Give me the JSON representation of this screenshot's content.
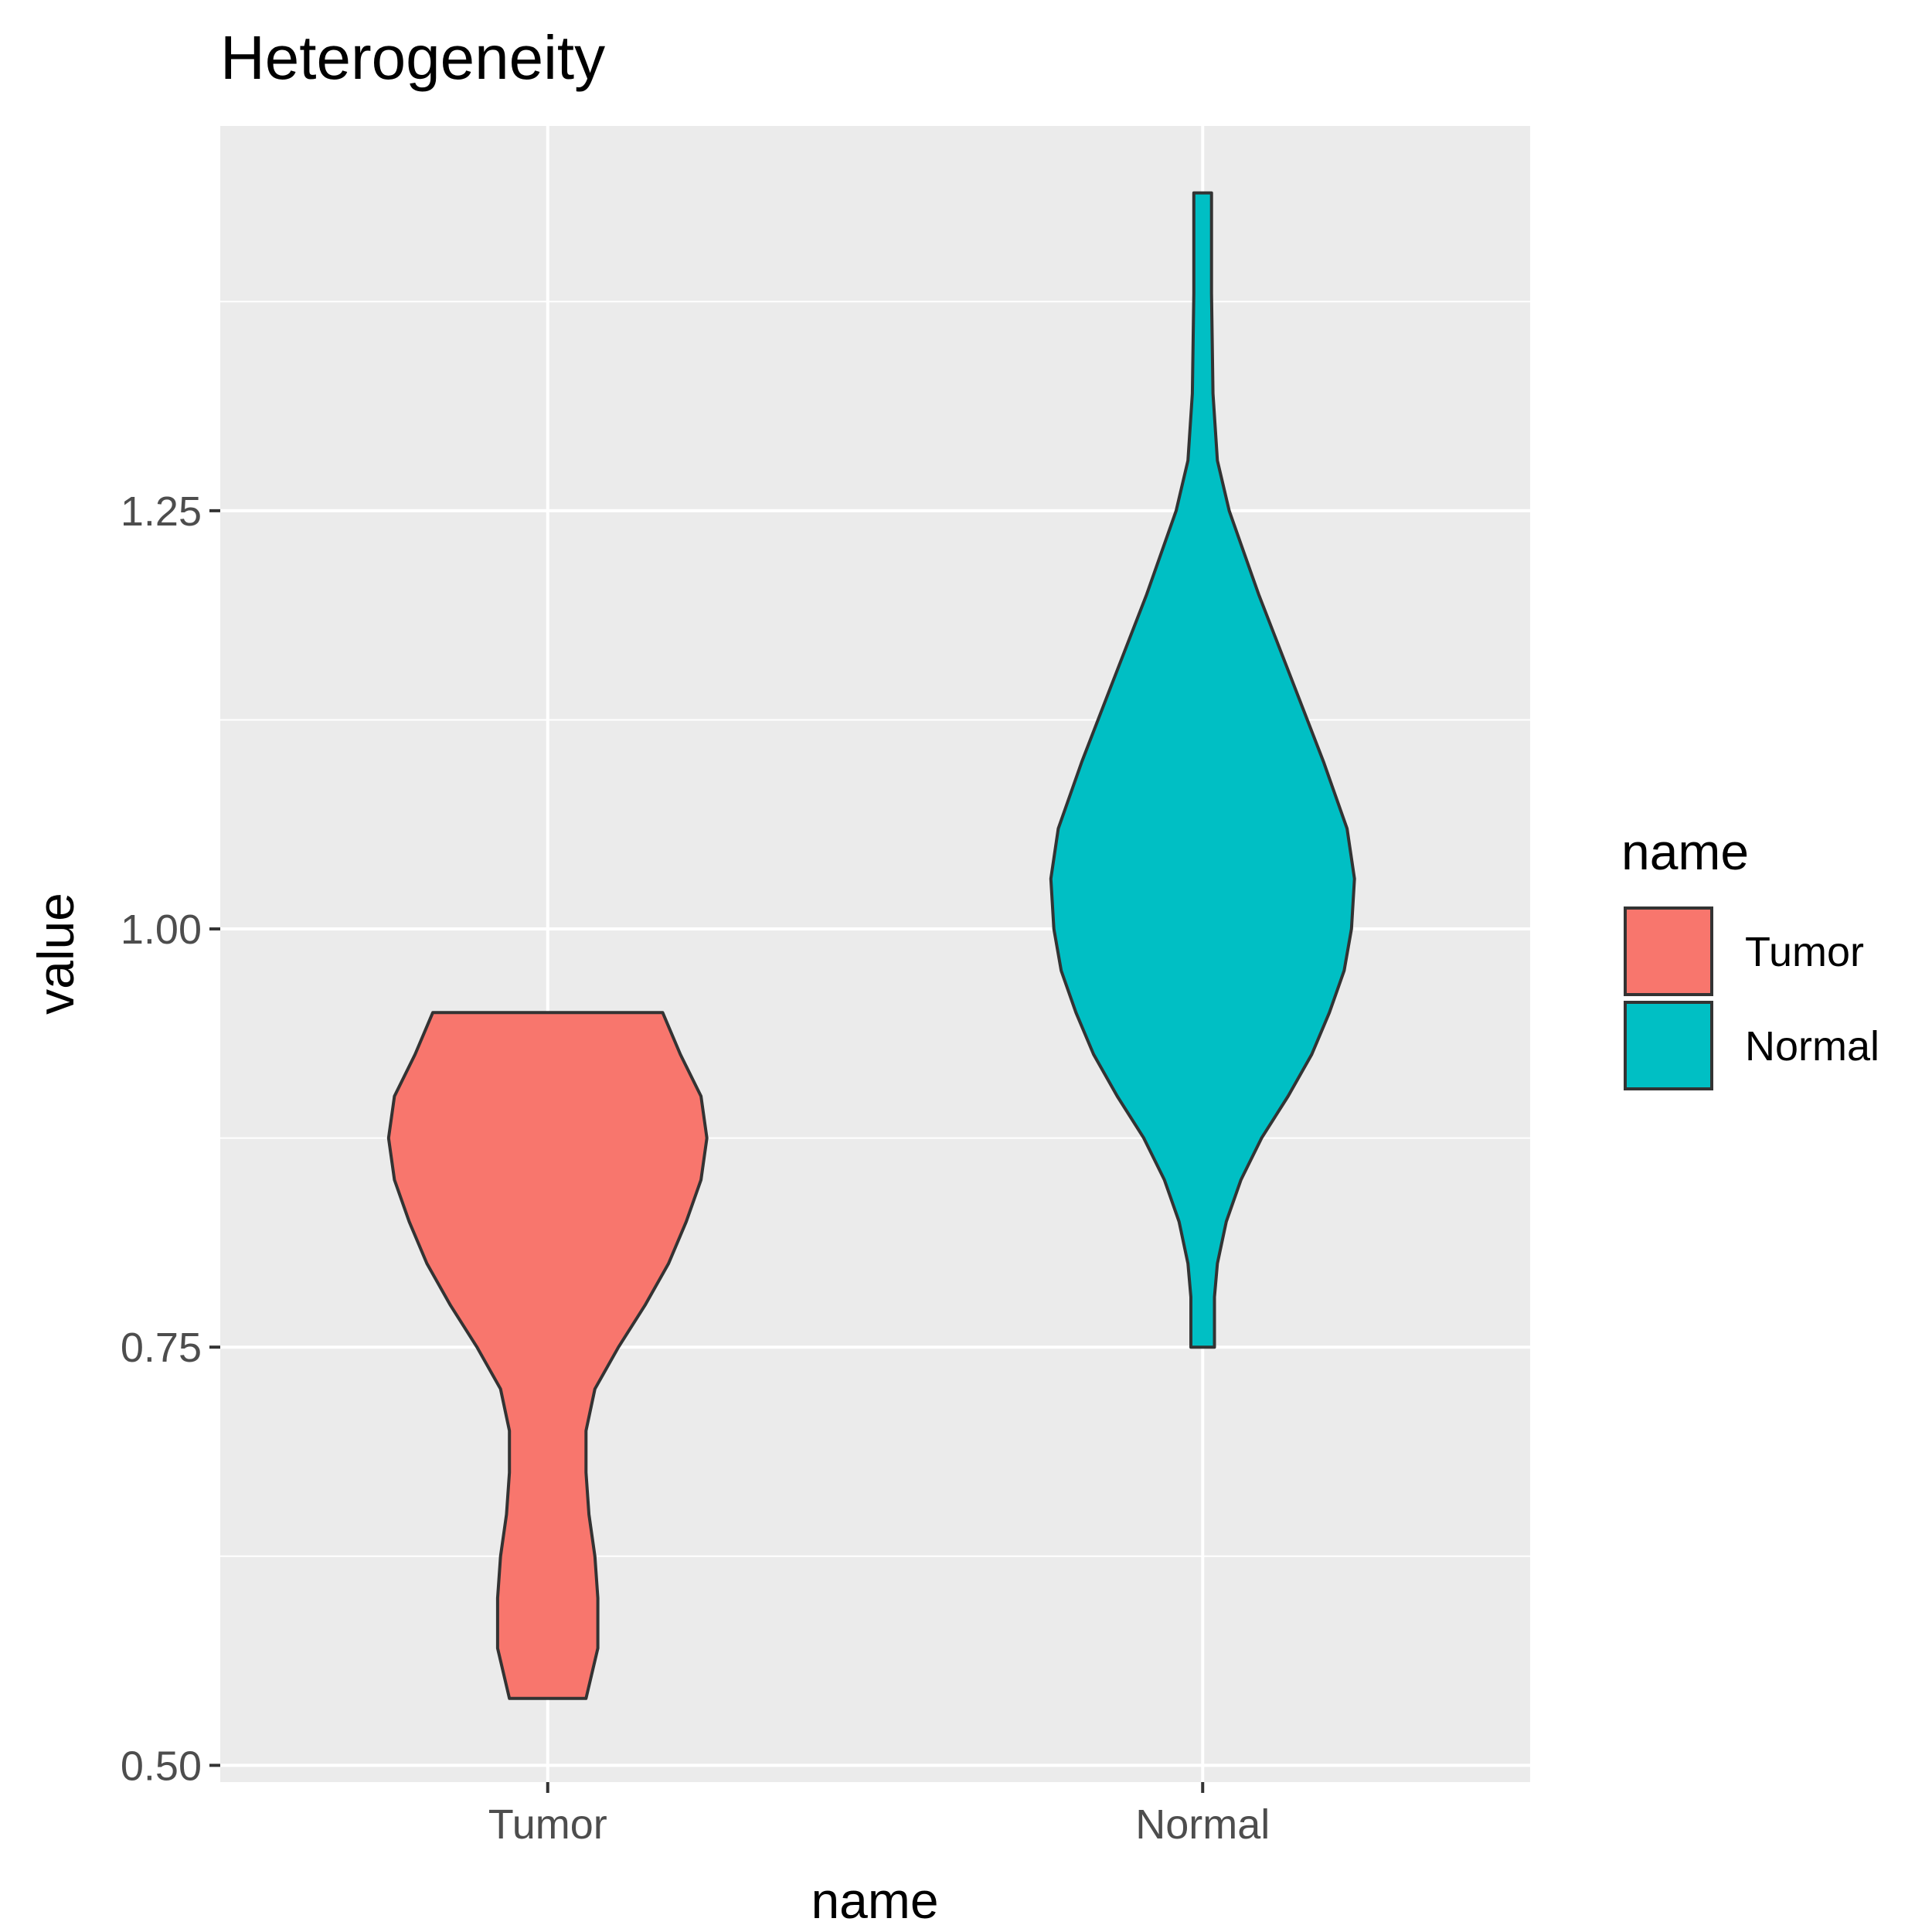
{
  "chart_data": {
    "type": "violin",
    "title": "Heterogeneity",
    "xlabel": "name",
    "ylabel": "value",
    "categories": [
      "Tumor",
      "Normal"
    ],
    "ylim": [
      0.49,
      1.48
    ],
    "yticks": [
      {
        "value": 0.5,
        "label": "0.50"
      },
      {
        "value": 0.75,
        "label": "0.75"
      },
      {
        "value": 1.0,
        "label": "1.00"
      },
      {
        "value": 1.25,
        "label": "1.25"
      }
    ],
    "y_minor_gridlines": [
      0.625,
      0.875,
      1.125,
      1.375
    ],
    "grid": true,
    "legend": {
      "title": "name",
      "position": "right",
      "entries": [
        "Tumor",
        "Normal"
      ]
    },
    "series": [
      {
        "name": "Tumor",
        "color": "#F8766D",
        "range": [
          0.54,
          0.95
        ],
        "density_profile": [
          {
            "y": 0.54,
            "w": 0.13
          },
          {
            "y": 0.57,
            "w": 0.17
          },
          {
            "y": 0.6,
            "w": 0.17
          },
          {
            "y": 0.625,
            "w": 0.16
          },
          {
            "y": 0.65,
            "w": 0.14
          },
          {
            "y": 0.675,
            "w": 0.13
          },
          {
            "y": 0.7,
            "w": 0.13
          },
          {
            "y": 0.725,
            "w": 0.16
          },
          {
            "y": 0.75,
            "w": 0.24
          },
          {
            "y": 0.775,
            "w": 0.33
          },
          {
            "y": 0.8,
            "w": 0.41
          },
          {
            "y": 0.825,
            "w": 0.47
          },
          {
            "y": 0.85,
            "w": 0.52
          },
          {
            "y": 0.875,
            "w": 0.54
          },
          {
            "y": 0.9,
            "w": 0.52
          },
          {
            "y": 0.925,
            "w": 0.45
          },
          {
            "y": 0.95,
            "w": 0.39
          }
        ]
      },
      {
        "name": "Normal",
        "color": "#00BFC4",
        "range": [
          0.75,
          1.44
        ],
        "density_profile": [
          {
            "y": 0.75,
            "w": 0.04
          },
          {
            "y": 0.78,
            "w": 0.04
          },
          {
            "y": 0.8,
            "w": 0.05
          },
          {
            "y": 0.825,
            "w": 0.08
          },
          {
            "y": 0.85,
            "w": 0.13
          },
          {
            "y": 0.875,
            "w": 0.2
          },
          {
            "y": 0.9,
            "w": 0.29
          },
          {
            "y": 0.925,
            "w": 0.37
          },
          {
            "y": 0.95,
            "w": 0.43
          },
          {
            "y": 0.975,
            "w": 0.48
          },
          {
            "y": 1.0,
            "w": 0.505
          },
          {
            "y": 1.03,
            "w": 0.515
          },
          {
            "y": 1.06,
            "w": 0.49
          },
          {
            "y": 1.1,
            "w": 0.41
          },
          {
            "y": 1.15,
            "w": 0.3
          },
          {
            "y": 1.2,
            "w": 0.19
          },
          {
            "y": 1.25,
            "w": 0.09
          },
          {
            "y": 1.28,
            "w": 0.05
          },
          {
            "y": 1.32,
            "w": 0.035
          },
          {
            "y": 1.38,
            "w": 0.03
          },
          {
            "y": 1.44,
            "w": 0.03
          }
        ]
      }
    ]
  }
}
